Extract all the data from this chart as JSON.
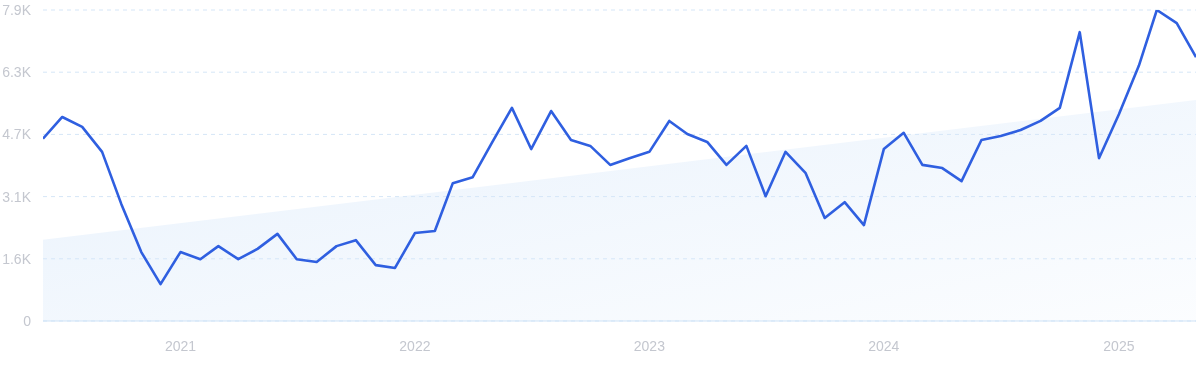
{
  "chart_data": {
    "type": "line",
    "x": [
      "2020-06",
      "2020-07",
      "2020-08",
      "2020-09",
      "2020-10",
      "2020-11",
      "2020-12",
      "2021-01",
      "2021-02",
      "2021-03",
      "2021-04",
      "2021-05",
      "2021-06",
      "2021-07",
      "2021-08",
      "2021-09",
      "2021-10",
      "2021-11",
      "2021-12",
      "2022-01",
      "2022-02",
      "2022-03",
      "2022-04",
      "2022-05",
      "2022-06",
      "2022-07",
      "2022-08",
      "2022-09",
      "2022-10",
      "2022-11",
      "2022-12",
      "2023-01",
      "2023-02",
      "2023-03",
      "2023-04",
      "2023-05",
      "2023-06",
      "2023-07",
      "2023-08",
      "2023-09",
      "2023-10",
      "2023-11",
      "2023-12",
      "2024-01",
      "2024-02",
      "2024-03",
      "2024-04",
      "2024-05",
      "2024-06",
      "2024-07",
      "2024-08",
      "2024-09",
      "2024-10",
      "2024-11",
      "2024-12",
      "2025-01",
      "2025-02",
      "2025-03",
      "2025-04",
      "2025-05"
    ],
    "series": [
      {
        "type": "area",
        "color": "#d6e7fa",
        "x": [
          "2020-06",
          "2025-05"
        ],
        "values": [
          2050,
          5580
        ]
      },
      {
        "color": "#2f5fe0",
        "values": [
          4600,
          5150,
          4900,
          4270,
          2950,
          1740,
          930,
          1740,
          1560,
          1890,
          1560,
          1820,
          2200,
          1560,
          1490,
          1890,
          2040,
          1410,
          1340,
          2220,
          2270,
          3480,
          3630,
          4500,
          5380,
          4340,
          5300,
          4570,
          4420,
          3940,
          4110,
          4270,
          5050,
          4720,
          4520,
          3940,
          4420,
          3150,
          4270,
          3740,
          2600,
          3000,
          2420,
          4340,
          4750,
          3940,
          3860,
          3530,
          4570,
          4670,
          4820,
          5050,
          5380,
          7290,
          4110,
          5220,
          6440,
          7850,
          7520,
          6660
        ]
      }
    ],
    "xlim": [
      "2020-06",
      "2025-05"
    ],
    "xticks": [
      "2021",
      "2022",
      "2023",
      "2024",
      "2025"
    ],
    "ylim": [
      0,
      7850
    ],
    "yticks": [
      0,
      {
        "value": 1570,
        "label": "1.6K"
      },
      {
        "value": 3140,
        "label": "3.1K"
      },
      {
        "value": 4710,
        "label": "4.7K"
      },
      {
        "value": 6280,
        "label": "6.3K"
      },
      {
        "value": 7850,
        "label": "7.9K"
      }
    ],
    "grid": "y"
  }
}
